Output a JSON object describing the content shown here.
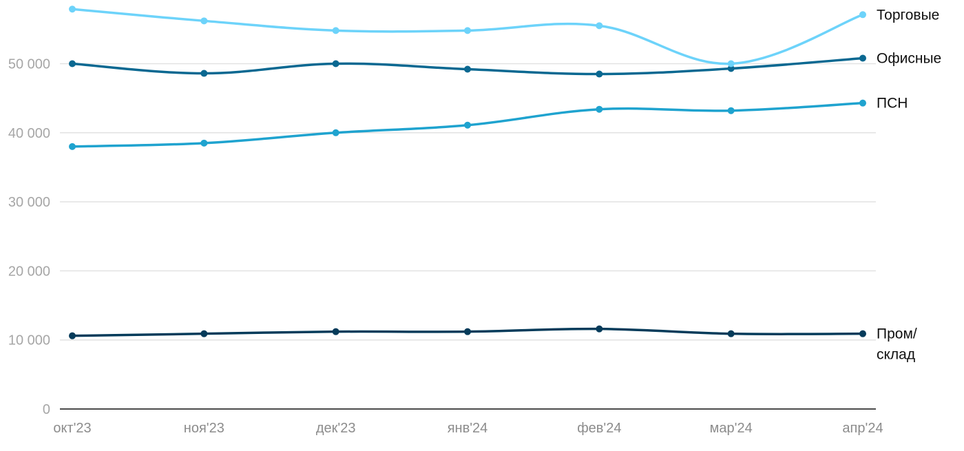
{
  "chart_data": {
    "type": "line",
    "title": "",
    "xlabel": "",
    "ylabel": "",
    "categories": [
      "окт'23",
      "ноя'23",
      "дек'23",
      "янв'24",
      "фев'24",
      "мар'24",
      "апр'24"
    ],
    "y_ticks": [
      0,
      10000,
      20000,
      30000,
      40000,
      50000
    ],
    "y_tick_labels": [
      "0",
      "10 000",
      "20 000",
      "30 000",
      "40 000",
      "50 000"
    ],
    "ylim": [
      0,
      58000
    ],
    "grid": true,
    "legend": "end-of-line labels (right)",
    "series": [
      {
        "name": "Торговые",
        "label_lines": [
          "Торговые"
        ],
        "color": "#6dd3fa",
        "values": [
          57900,
          56200,
          54800,
          54800,
          55500,
          50000,
          57100
        ]
      },
      {
        "name": "Офисные",
        "label_lines": [
          "Офисные"
        ],
        "color": "#0a6891",
        "values": [
          50000,
          48600,
          50000,
          49200,
          48500,
          49300,
          50800
        ]
      },
      {
        "name": "ПСН",
        "label_lines": [
          "ПСН"
        ],
        "color": "#1fa3cf",
        "values": [
          38000,
          38500,
          40000,
          41100,
          43400,
          43200,
          44300
        ]
      },
      {
        "name": "Пром/склад",
        "label_lines": [
          "Пром/",
          "склад"
        ],
        "color": "#053b5a",
        "values": [
          10600,
          10900,
          11200,
          11200,
          11600,
          10900,
          10900
        ]
      }
    ]
  }
}
